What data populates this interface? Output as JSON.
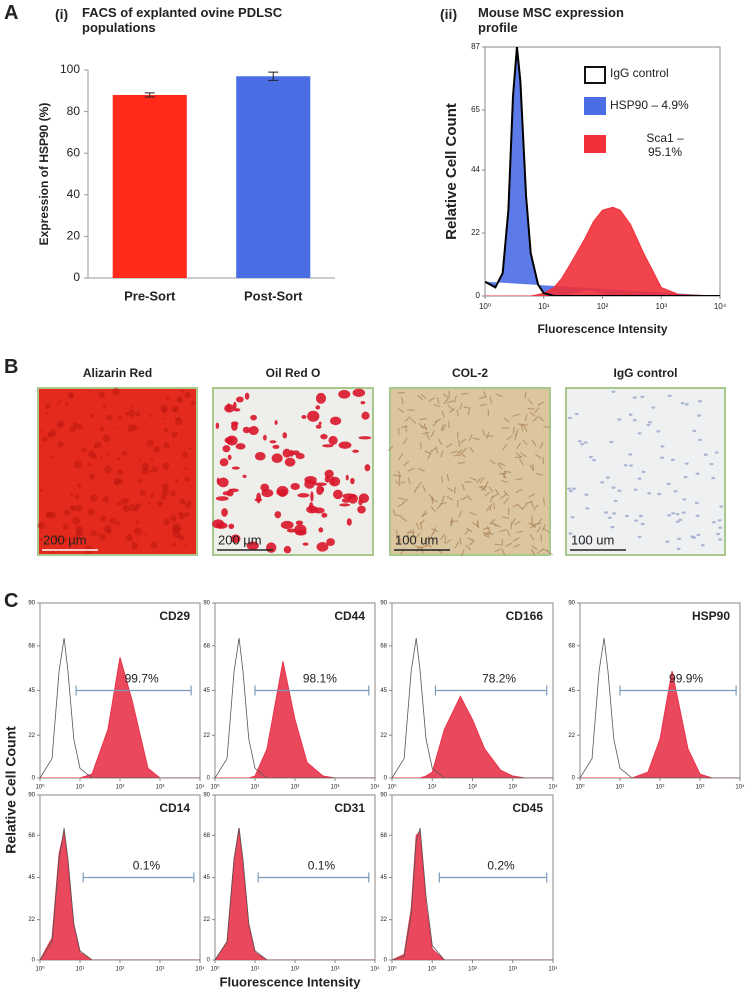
{
  "panel_labels": [
    "A",
    "B",
    "C"
  ],
  "chart_data": [
    {
      "type": "bar",
      "subtitle": "(i)",
      "title": "FACS of explanted ovine PDLSC populations",
      "categories": [
        "Pre-Sort",
        "Post-Sort"
      ],
      "values": [
        88,
        97
      ],
      "errors": [
        1,
        2
      ],
      "colors": [
        "#ff2a1a",
        "#4a6de5"
      ],
      "ylabel": "Expression of HSP90 (%)",
      "ylim": [
        0,
        100
      ],
      "yticks": [
        0,
        20,
        40,
        60,
        80,
        100
      ]
    },
    {
      "type": "area",
      "subtitle": "(ii)",
      "title": "Mouse MSC expression profile",
      "ylabel": "Relative Cell Count",
      "xlabel": "Fluorescence Intensity",
      "xscale": "log",
      "x": [
        1,
        1.5,
        2,
        2.5,
        3,
        3.5,
        4,
        5,
        6,
        8,
        10,
        15,
        20,
        30,
        50,
        70,
        100,
        150,
        200,
        300,
        500,
        1000,
        2000,
        10000
      ],
      "series": [
        {
          "name": "IgG  control",
          "color": "#000000",
          "filled": false,
          "values": [
            5,
            3,
            8,
            30,
            70,
            87,
            75,
            35,
            15,
            4,
            1,
            0,
            0,
            0,
            0,
            0,
            0,
            0,
            0,
            0,
            0,
            0,
            0,
            0
          ]
        },
        {
          "name": "HSP90 – 4.9%",
          "color": "#4a6de5",
          "filled": true,
          "values": [
            5,
            3,
            8,
            30,
            68,
            85,
            73,
            33,
            14,
            4,
            1,
            0,
            0,
            1,
            2,
            2,
            1,
            0,
            0,
            0,
            0,
            0,
            0,
            0
          ]
        },
        {
          "name": "Sca1 – 95.1%",
          "color": "#f0303a",
          "filled": true,
          "values": [
            0,
            0,
            0,
            0,
            0,
            0,
            0,
            0,
            0,
            0.5,
            1,
            3,
            6,
            12,
            20,
            26,
            30,
            31,
            30,
            25,
            15,
            3,
            0.5,
            0
          ]
        }
      ],
      "xlim": [
        1,
        10000
      ],
      "xticks": [
        {
          "value": 1,
          "label": "10⁰"
        },
        {
          "value": 10,
          "label": "10¹"
        },
        {
          "value": 100,
          "label": "10²"
        },
        {
          "value": 1000,
          "label": "10³"
        },
        {
          "value": 10000,
          "label": "10⁴"
        }
      ],
      "ylim": [
        0,
        87
      ],
      "yticks": [
        0,
        22,
        44,
        65,
        87
      ]
    },
    {
      "type": "area",
      "title": "CD29",
      "xscale": "log",
      "x": [
        1,
        2,
        3,
        4,
        5,
        7,
        10,
        20,
        50,
        100,
        200,
        500,
        1000,
        2000,
        5000,
        10000
      ],
      "series": [
        {
          "color": "#555555",
          "filled": false,
          "values": [
            0,
            10,
            55,
            72,
            55,
            20,
            5,
            0,
            0,
            0,
            0,
            0,
            0,
            0,
            0,
            0
          ]
        },
        {
          "color": "#e8344a",
          "filled": true,
          "values": [
            0,
            0,
            0,
            0,
            0,
            0,
            0,
            2,
            25,
            62,
            40,
            5,
            0,
            0,
            0,
            0
          ]
        }
      ],
      "gate": {
        "value": 99.7,
        "label": "99.7%",
        "x": [
          8,
          6000
        ],
        "y": 45
      },
      "xlim": [
        1,
        10000
      ],
      "xticks": [
        {
          "value": 1,
          "label": "10⁰"
        },
        {
          "value": 10,
          "label": "10¹"
        },
        {
          "value": 100,
          "label": "10²"
        },
        {
          "value": 1000,
          "label": "10³"
        },
        {
          "value": 10000,
          "label": "10⁴"
        }
      ],
      "ylim": [
        0,
        90
      ],
      "yticks": [
        0,
        22,
        45,
        68,
        90
      ]
    },
    {
      "type": "area",
      "title": "CD44",
      "xscale": "log",
      "x": [
        1,
        2,
        3,
        4,
        5,
        7,
        10,
        20,
        50,
        100,
        200,
        500,
        1000,
        2000,
        5000,
        10000
      ],
      "series": [
        {
          "color": "#555555",
          "filled": false,
          "values": [
            0,
            10,
            55,
            72,
            55,
            20,
            5,
            0,
            0,
            0,
            0,
            0,
            0,
            0,
            0,
            0
          ]
        },
        {
          "color": "#e8344a",
          "filled": true,
          "values": [
            0,
            0,
            0,
            0,
            0,
            0,
            1,
            15,
            60,
            30,
            8,
            1,
            0,
            0,
            0,
            0
          ]
        }
      ],
      "gate": {
        "value": 98.1,
        "label": "98.1%",
        "x": [
          10,
          7000
        ],
        "y": 45
      },
      "xlim": [
        1,
        10000
      ],
      "xticks": [
        {
          "value": 1,
          "label": "10⁰"
        },
        {
          "value": 10,
          "label": "10¹"
        },
        {
          "value": 100,
          "label": "10²"
        },
        {
          "value": 1000,
          "label": "10³"
        },
        {
          "value": 10000,
          "label": "10⁴"
        }
      ],
      "ylim": [
        0,
        90
      ],
      "yticks": [
        0,
        22,
        45,
        68,
        90
      ]
    },
    {
      "type": "area",
      "title": "CD166",
      "xscale": "log",
      "x": [
        1,
        2,
        3,
        4,
        5,
        7,
        10,
        20,
        50,
        100,
        200,
        500,
        1000,
        2000,
        5000,
        10000
      ],
      "series": [
        {
          "color": "#555555",
          "filled": false,
          "values": [
            0,
            10,
            55,
            72,
            55,
            20,
            5,
            0,
            0,
            0,
            0,
            0,
            0,
            0,
            0,
            0
          ]
        },
        {
          "color": "#e8344a",
          "filled": true,
          "values": [
            0,
            0,
            0,
            0,
            0,
            1,
            3,
            25,
            42,
            30,
            15,
            4,
            1,
            0,
            0,
            0
          ]
        }
      ],
      "gate": {
        "value": 78.2,
        "label": "78.2%",
        "x": [
          12,
          7000
        ],
        "y": 45
      },
      "xlim": [
        1,
        10000
      ],
      "xticks": [
        {
          "value": 1,
          "label": "10⁰"
        },
        {
          "value": 10,
          "label": "10¹"
        },
        {
          "value": 100,
          "label": "10²"
        },
        {
          "value": 1000,
          "label": "10³"
        },
        {
          "value": 10000,
          "label": "10⁴"
        }
      ],
      "ylim": [
        0,
        90
      ],
      "yticks": [
        0,
        22,
        45,
        68,
        90
      ]
    },
    {
      "type": "area",
      "title": "HSP90",
      "xscale": "log",
      "x": [
        1,
        2,
        3,
        4,
        5,
        7,
        10,
        20,
        50,
        100,
        200,
        500,
        1000,
        2000,
        5000,
        10000
      ],
      "series": [
        {
          "color": "#555555",
          "filled": false,
          "values": [
            0,
            10,
            55,
            72,
            55,
            20,
            5,
            0,
            0,
            0,
            0,
            0,
            0,
            0,
            0,
            0
          ]
        },
        {
          "color": "#e8344a",
          "filled": true,
          "values": [
            0,
            0,
            0,
            0,
            0,
            0,
            0,
            0,
            3,
            20,
            55,
            15,
            2,
            0,
            0,
            0
          ]
        }
      ],
      "gate": {
        "value": 99.9,
        "label": "99.9%",
        "x": [
          10,
          8000
        ],
        "y": 45
      },
      "xlim": [
        1,
        10000
      ],
      "xticks": [
        {
          "value": 1,
          "label": "10⁰"
        },
        {
          "value": 10,
          "label": "10¹"
        },
        {
          "value": 100,
          "label": "10²"
        },
        {
          "value": 1000,
          "label": "10³"
        },
        {
          "value": 10000,
          "label": "10⁴"
        }
      ],
      "ylim": [
        0,
        90
      ],
      "yticks": [
        0,
        22,
        45,
        68,
        90
      ]
    },
    {
      "type": "area",
      "title": "CD14",
      "xscale": "log",
      "x": [
        1,
        2,
        3,
        4,
        5,
        7,
        10,
        20,
        50,
        100,
        200,
        500,
        1000,
        2000,
        5000,
        10000
      ],
      "series": [
        {
          "color": "#555555",
          "filled": false,
          "values": [
            0,
            10,
            55,
            72,
            55,
            20,
            5,
            0,
            0,
            0,
            0,
            0,
            0,
            0,
            0,
            0
          ]
        },
        {
          "color": "#e8344a",
          "filled": true,
          "values": [
            0,
            12,
            58,
            70,
            52,
            18,
            4,
            0,
            0,
            0,
            0,
            0,
            0,
            0,
            0,
            0
          ]
        }
      ],
      "gate": {
        "value": 0.1,
        "label": "0.1%",
        "x": [
          12,
          7000
        ],
        "y": 45
      },
      "xlim": [
        1,
        10000
      ],
      "xticks": [
        {
          "value": 1,
          "label": "10⁰"
        },
        {
          "value": 10,
          "label": "10¹"
        },
        {
          "value": 100,
          "label": "10²"
        },
        {
          "value": 1000,
          "label": "10³"
        },
        {
          "value": 10000,
          "label": "10⁴"
        }
      ],
      "ylim": [
        0,
        90
      ],
      "yticks": [
        0,
        22,
        45,
        68,
        90
      ]
    },
    {
      "type": "area",
      "title": "CD31",
      "xscale": "log",
      "x": [
        1,
        2,
        3,
        4,
        5,
        7,
        10,
        20,
        50,
        100,
        200,
        500,
        1000,
        2000,
        5000,
        10000
      ],
      "series": [
        {
          "color": "#555555",
          "filled": false,
          "values": [
            0,
            10,
            55,
            72,
            55,
            20,
            5,
            0,
            0,
            0,
            0,
            0,
            0,
            0,
            0,
            0
          ]
        },
        {
          "color": "#e8344a",
          "filled": true,
          "values": [
            0,
            10,
            55,
            72,
            50,
            18,
            4,
            0,
            0,
            0,
            0,
            0,
            0,
            0,
            0,
            0
          ]
        }
      ],
      "gate": {
        "value": 0.1,
        "label": "0.1%",
        "x": [
          12,
          7000
        ],
        "y": 45
      },
      "xlim": [
        1,
        10000
      ],
      "xticks": [
        {
          "value": 1,
          "label": "10⁰"
        },
        {
          "value": 10,
          "label": "10¹"
        },
        {
          "value": 100,
          "label": "10²"
        },
        {
          "value": 1000,
          "label": "10³"
        },
        {
          "value": 10000,
          "label": "10⁴"
        }
      ],
      "ylim": [
        0,
        90
      ],
      "yticks": [
        0,
        22,
        45,
        68,
        90
      ]
    },
    {
      "type": "area",
      "title": "CD45",
      "xscale": "log",
      "x": [
        1,
        2,
        3,
        4,
        5,
        7,
        10,
        20,
        50,
        100,
        200,
        500,
        1000,
        2000,
        5000,
        10000
      ],
      "series": [
        {
          "color": "#555555",
          "filled": false,
          "values": [
            0,
            2,
            25,
            65,
            72,
            35,
            8,
            0,
            0,
            0,
            0,
            0,
            0,
            0,
            0,
            0
          ]
        },
        {
          "color": "#e8344a",
          "filled": true,
          "values": [
            0,
            3,
            28,
            68,
            70,
            30,
            6,
            0,
            0,
            0,
            0,
            0,
            0,
            0,
            0,
            0
          ]
        }
      ],
      "gate": {
        "value": 0.2,
        "label": "0.2%",
        "x": [
          15,
          7000
        ],
        "y": 45
      },
      "xlim": [
        1,
        10000
      ],
      "xticks": [
        {
          "value": 1,
          "label": "10⁰"
        },
        {
          "value": 10,
          "label": "10¹"
        },
        {
          "value": 100,
          "label": "10²"
        },
        {
          "value": 1000,
          "label": "10³"
        },
        {
          "value": 10000,
          "label": "10⁴"
        }
      ],
      "ylim": [
        0,
        90
      ],
      "yticks": [
        0,
        22,
        45,
        68,
        90
      ]
    }
  ],
  "images": [
    {
      "title": "Alizarin Red",
      "scale": "200 µm"
    },
    {
      "title": "Oil Red O",
      "scale": "200 µm"
    },
    {
      "title": "COL-2",
      "scale": "100 um"
    },
    {
      "title": "IgG control",
      "scale": "100 um"
    }
  ],
  "panel_c": {
    "ylabel": "Relative Cell Count",
    "xlabel": "Fluorescence Intensity"
  }
}
